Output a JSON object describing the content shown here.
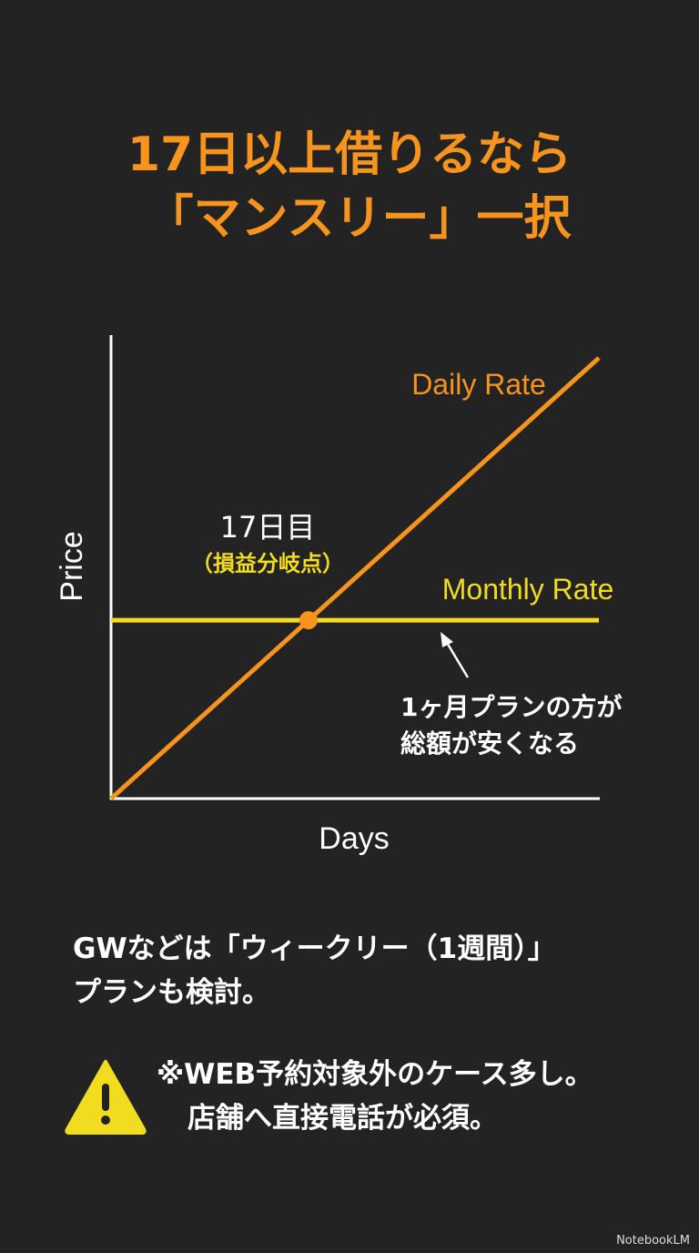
{
  "title": {
    "line1": "17日以上借りるなら",
    "line2": "「マンスリー」一択"
  },
  "colors": {
    "background": "#232323",
    "daily": "#f7941d",
    "monthly": "#f2dc1f",
    "axis": "#ffffff",
    "title": "#f7941d"
  },
  "chart_data": {
    "type": "line",
    "xlabel": "Days",
    "ylabel": "Price",
    "grid": false,
    "xlim": [
      0,
      42
    ],
    "ylim": [
      0,
      44
    ],
    "series": [
      {
        "name": "Daily Rate",
        "x": [
          0,
          42
        ],
        "y": [
          0,
          42
        ],
        "color": "#f7941d"
      },
      {
        "name": "Monthly Rate",
        "x": [
          0,
          42
        ],
        "y": [
          17,
          17
        ],
        "color": "#f2dc1f"
      }
    ],
    "breakeven": {
      "x": 17,
      "y": 17,
      "label": "17日目",
      "sublabel": "（損益分岐点）"
    },
    "annotation": {
      "line1": "1ヶ月プランの方が",
      "line2": "総額が安くなる"
    }
  },
  "notes": {
    "gw_line1": "GWなどは「ウィークリー（1週間）」",
    "gw_line2": "プランも検討。",
    "warn_line1": "※WEB予約対象外のケース多し。",
    "warn_line2": "店舗へ直接電話が必須。",
    "warn_icon": "warning-triangle-icon"
  },
  "brand": "NotebookLM"
}
